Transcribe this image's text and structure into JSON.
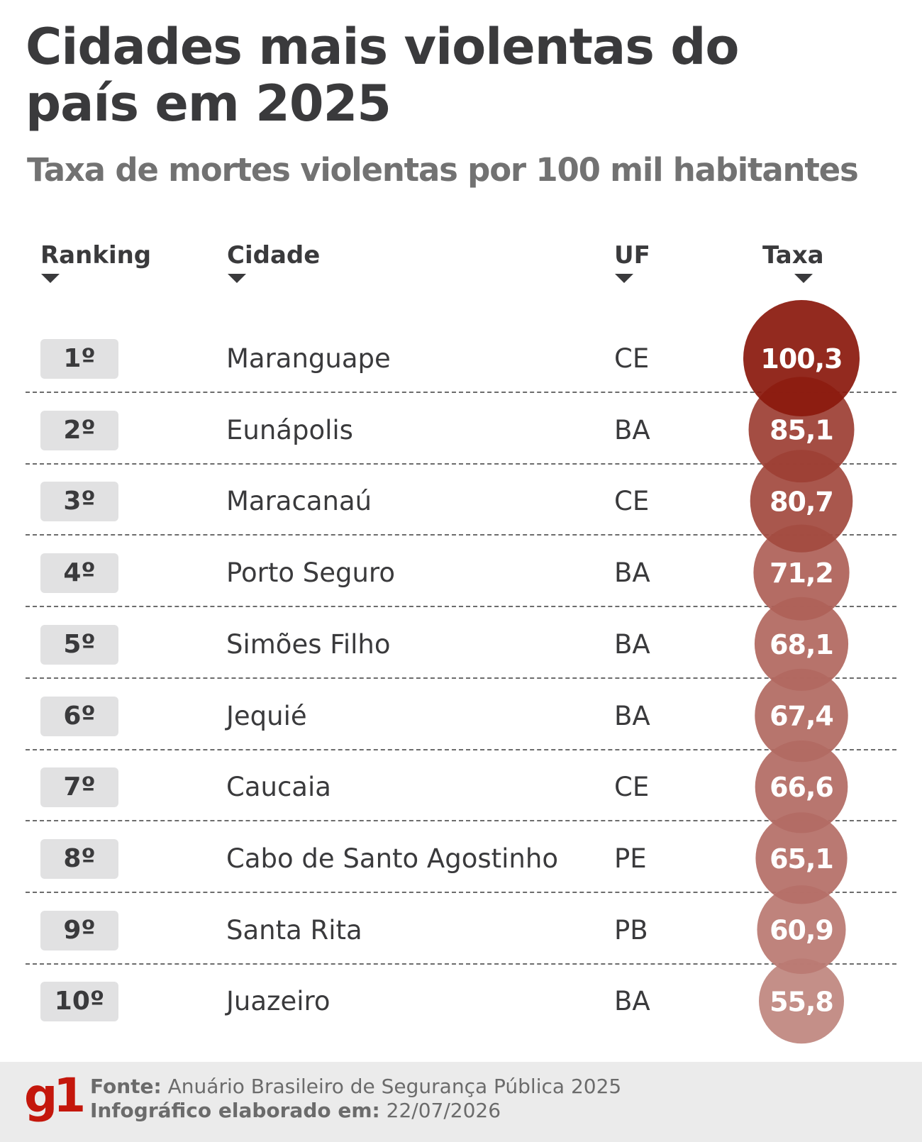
{
  "header": {
    "title": "Cidades mais violentas do país em 2025",
    "subtitle": "Taxa de mortes violentas por 100 mil habitantes"
  },
  "columns": {
    "rank": "Ranking",
    "city": "Cidade",
    "uf": "UF",
    "rate": "Taxa"
  },
  "chart_data": {
    "type": "table",
    "title": "Cidades mais violentas do país em 2025",
    "subtitle": "Taxa de mortes violentas por 100 mil habitantes",
    "columns": [
      "Ranking",
      "Cidade",
      "UF",
      "Taxa"
    ],
    "rows": [
      {
        "rank": "1º",
        "city": "Maranguape",
        "uf": "CE",
        "rate": 100.3,
        "rate_label": "100,3"
      },
      {
        "rank": "2º",
        "city": "Eunápolis",
        "uf": "BA",
        "rate": 85.1,
        "rate_label": "85,1"
      },
      {
        "rank": "3º",
        "city": "Maracanaú",
        "uf": "CE",
        "rate": 80.7,
        "rate_label": "80,7"
      },
      {
        "rank": "4º",
        "city": "Porto Seguro",
        "uf": "BA",
        "rate": 71.2,
        "rate_label": "71,2"
      },
      {
        "rank": "5º",
        "city": "Simões Filho",
        "uf": "BA",
        "rate": 68.1,
        "rate_label": "68,1"
      },
      {
        "rank": "6º",
        "city": "Jequié",
        "uf": "BA",
        "rate": 67.4,
        "rate_label": "67,4"
      },
      {
        "rank": "7º",
        "city": "Caucaia",
        "uf": "CE",
        "rate": 66.6,
        "rate_label": "66,6"
      },
      {
        "rank": "8º",
        "city": "Cabo de Santo Agostinho",
        "uf": "PE",
        "rate": 65.1,
        "rate_label": "65,1"
      },
      {
        "rank": "9º",
        "city": "Santa Rita",
        "uf": "PB",
        "rate": 60.9,
        "rate_label": "60,9"
      },
      {
        "rank": "10º",
        "city": "Juazeiro",
        "uf": "BA",
        "rate": 55.8,
        "rate_label": "55,8"
      }
    ]
  },
  "colors": {
    "bubble_dark": "#8b1a0e",
    "bubble_light": "#c0867f",
    "logo": "#c4170c",
    "text": "#3a3a3c"
  },
  "footer": {
    "logo": "g1",
    "source_label": "Fonte:",
    "source_value": "Anuário Brasileiro de Segurança Pública 2025",
    "date_label": "Infográfico elaborado em:",
    "date_value": "22/07/2026"
  }
}
